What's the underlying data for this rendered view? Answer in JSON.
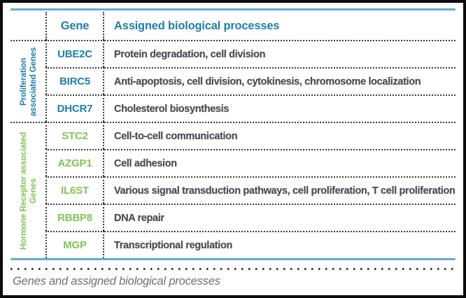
{
  "table": {
    "header": {
      "gene": "Gene",
      "processes": "Assigned biological processes"
    },
    "sections": [
      {
        "label": "Proliferation associated Genes",
        "label_lines": [
          "Proliferation",
          "associated Genes"
        ],
        "rows": [
          {
            "gene": "UBE2C",
            "process": "Protein degradation, cell division"
          },
          {
            "gene": "BIRC5",
            "process": "Anti-apoptosis, cell division, cytokinesis, chromosome localization"
          },
          {
            "gene": "DHCR7",
            "process": "Cholesterol biosynthesis"
          }
        ]
      },
      {
        "label": "Hormone Receptor associated Genes",
        "label_lines": [
          "Hormone Receptor associated",
          "Genes"
        ],
        "rows": [
          {
            "gene": "STC2",
            "process": "Cell-to-cell communication"
          },
          {
            "gene": "AZGP1",
            "process": "Cell adhesion"
          },
          {
            "gene": "IL6ST",
            "process": "Various signal transduction pathways, cell proliferation, T cell proliferation"
          },
          {
            "gene": "RBBP8",
            "process": "DNA repair"
          },
          {
            "gene": "MGP",
            "process": "Transcriptional regulation"
          }
        ]
      }
    ],
    "caption": "Genes and assigned biological processes"
  },
  "colors": {
    "header_and_proliferation_genes": "#1e7fae",
    "hormone_receptor_genes": "#82c456",
    "horizontal_rule": "#65adce",
    "body_text": "#4e4e56",
    "caption_text": "#6e6f72",
    "dotted_lines": "#3b3b3b",
    "frame_border": "#0c0c0c"
  }
}
